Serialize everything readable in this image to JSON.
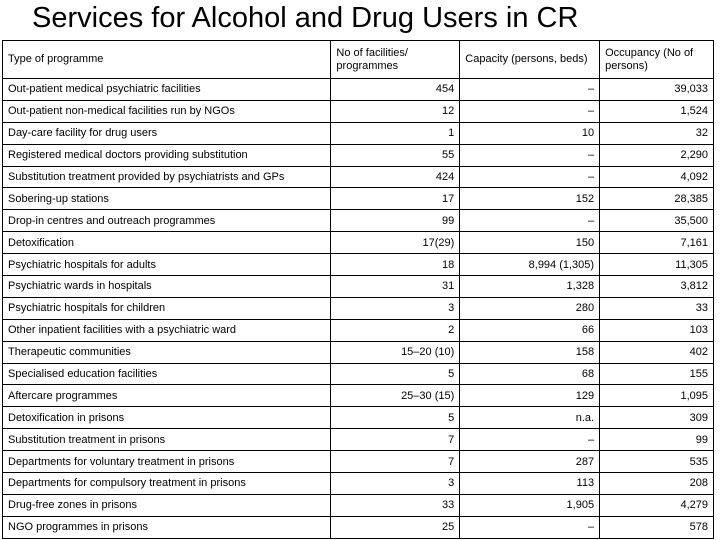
{
  "title": "Services for Alcohol and Drug Users in CR",
  "headers": [
    "Type of programme",
    "No of facilities/ programmes",
    "Capacity (persons, beds)",
    "Occupancy (No of persons)"
  ],
  "rows": [
    [
      "Out-patient medical psychiatric facilities",
      "454",
      "–",
      "39,033"
    ],
    [
      "Out-patient non-medical facilities run by NGOs",
      "12",
      "–",
      "1,524"
    ],
    [
      "Day-care facility for drug users",
      "1",
      "10",
      "32"
    ],
    [
      "Registered medical doctors providing substitution",
      "55",
      "–",
      "2,290"
    ],
    [
      "Substitution treatment provided by psychiatrists and GPs",
      "424",
      "–",
      "4,092"
    ],
    [
      "Sobering-up stations",
      "17",
      "152",
      "28,385"
    ],
    [
      "Drop-in centres and outreach programmes",
      "99",
      "–",
      "35,500"
    ],
    [
      "Detoxification",
      "17(29)",
      "150",
      "7,161"
    ],
    [
      "Psychiatric hospitals for adults",
      "18",
      "8,994 (1,305)",
      "11,305"
    ],
    [
      "Psychiatric wards in hospitals",
      "31",
      "1,328",
      "3,812"
    ],
    [
      "Psychiatric hospitals for children",
      "3",
      "280",
      "33"
    ],
    [
      "Other inpatient facilities with a psychiatric ward",
      "2",
      "66",
      "103"
    ],
    [
      "Therapeutic communities",
      "15–20 (10)",
      "158",
      "402"
    ],
    [
      "Specialised  education facilities",
      "5",
      "68",
      "155"
    ],
    [
      "Aftercare programmes",
      "25–30 (15)",
      "129",
      "1,095"
    ],
    [
      "Detoxification in prisons",
      "5",
      "n.a.",
      "309"
    ],
    [
      "Substitution treatment in prisons",
      "7",
      "–",
      "99"
    ],
    [
      "Departments for voluntary treatment in prisons",
      "7",
      "287",
      "535"
    ],
    [
      "Departments for compulsory treatment in prisons",
      "3",
      "113",
      "208"
    ],
    [
      "Drug-free zones in prisons",
      "33",
      "1,905",
      "4,279"
    ],
    [
      "NGO programmes in prisons",
      "25",
      "–",
      "578"
    ]
  ]
}
